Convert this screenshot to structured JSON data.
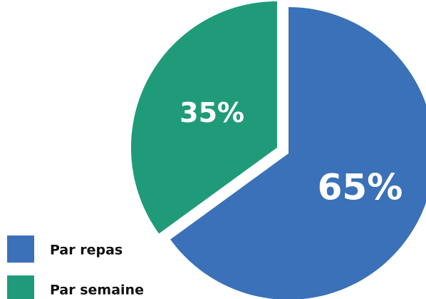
{
  "chart_data": {
    "type": "pie",
    "categories": [
      "Par repas",
      "Par semaine"
    ],
    "values": [
      65,
      35
    ],
    "value_labels": [
      "65%",
      "35%"
    ],
    "colors": [
      "#3a71b8",
      "#1f9b79"
    ],
    "legend": "bottom-left"
  }
}
